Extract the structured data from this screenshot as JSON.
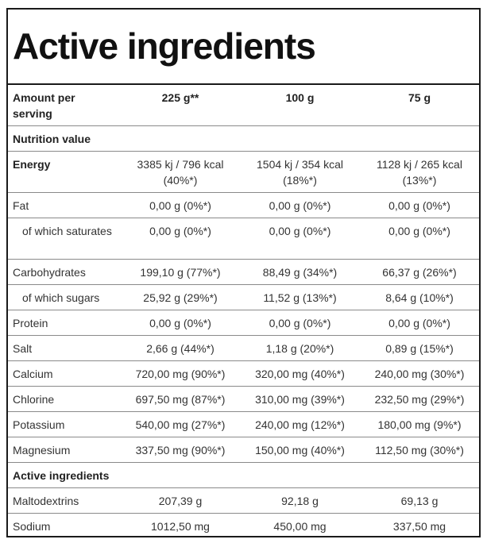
{
  "title": "Active ingredients",
  "table": {
    "header": {
      "label": "Amount per serving",
      "col1": "225 g**",
      "col2": "100 g",
      "col3": "75 g"
    },
    "section_nutrition": "Nutrition value",
    "rows": [
      {
        "label": "Energy",
        "v1": "3385 kj / 796 kcal (40%*)",
        "v2": "1504 kj / 354 kcal (18%*)",
        "v3": "1128 kj / 265 kcal (13%*)"
      },
      {
        "label": "Fat",
        "v1": "0,00 g (0%*)",
        "v2": "0,00 g (0%*)",
        "v3": "0,00 g (0%*)"
      },
      {
        "label": "of which saturates",
        "v1": "0,00 g (0%*)",
        "v2": "0,00 g (0%*)",
        "v3": "0,00 g (0%*)"
      },
      {
        "label": "Carbohydrates",
        "v1": "199,10 g (77%*)",
        "v2": "88,49 g (34%*)",
        "v3": "66,37 g (26%*)"
      },
      {
        "label": "of which sugars",
        "v1": "25,92 g (29%*)",
        "v2": "11,52 g (13%*)",
        "v3": "8,64 g (10%*)"
      },
      {
        "label": "Protein",
        "v1": "0,00 g (0%*)",
        "v2": "0,00 g (0%*)",
        "v3": "0,00 g (0%*)"
      },
      {
        "label": "Salt",
        "v1": "2,66 g (44%*)",
        "v2": "1,18 g (20%*)",
        "v3": "0,89 g (15%*)"
      },
      {
        "label": "Calcium",
        "v1": "720,00 mg (90%*)",
        "v2": "320,00 mg (40%*)",
        "v3": "240,00 mg (30%*)"
      },
      {
        "label": "Chlorine",
        "v1": "697,50 mg (87%*)",
        "v2": "310,00 mg (39%*)",
        "v3": "232,50 mg (29%*)"
      },
      {
        "label": "Potassium",
        "v1": "540,00 mg (27%*)",
        "v2": "240,00 mg (12%*)",
        "v3": "180,00 mg (9%*)"
      },
      {
        "label": "Magnesium",
        "v1": "337,50 mg (90%*)",
        "v2": "150,00 mg (40%*)",
        "v3": "112,50 mg (30%*)"
      }
    ],
    "section_active": "Active ingredients",
    "active_rows": [
      {
        "label": "Maltodextrins",
        "v1": "207,39 g",
        "v2": "92,18 g",
        "v3": "69,13 g"
      },
      {
        "label": "Sodium",
        "v1": "1012,50 mg",
        "v2": "450,00 mg",
        "v3": "337,50 mg"
      }
    ]
  }
}
